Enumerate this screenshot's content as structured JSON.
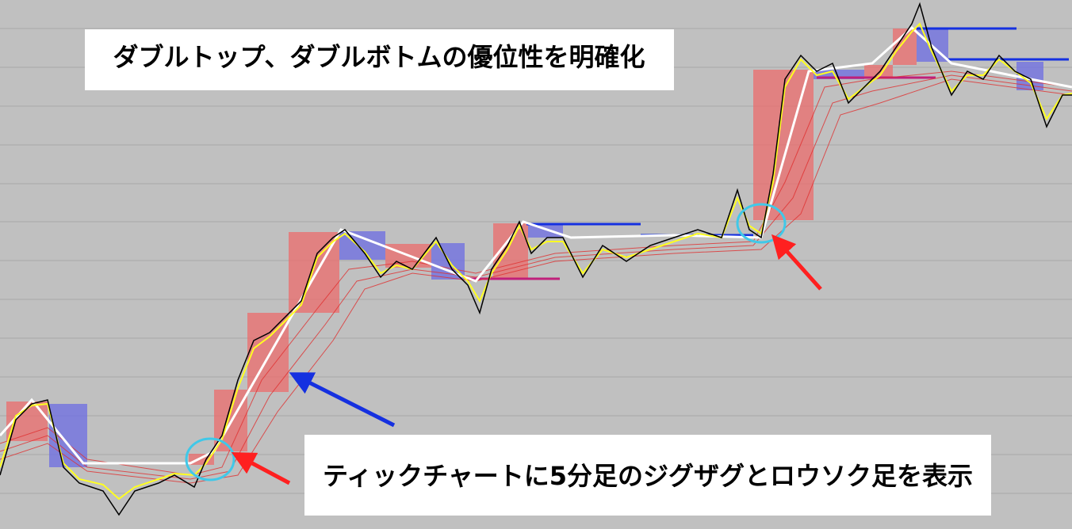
{
  "captions": {
    "top": "ダブルトップ、ダブルボトムの優位性を明確化",
    "bottom": "ティックチャートに5分足のジグザグとロウソク足を表示"
  }
}
